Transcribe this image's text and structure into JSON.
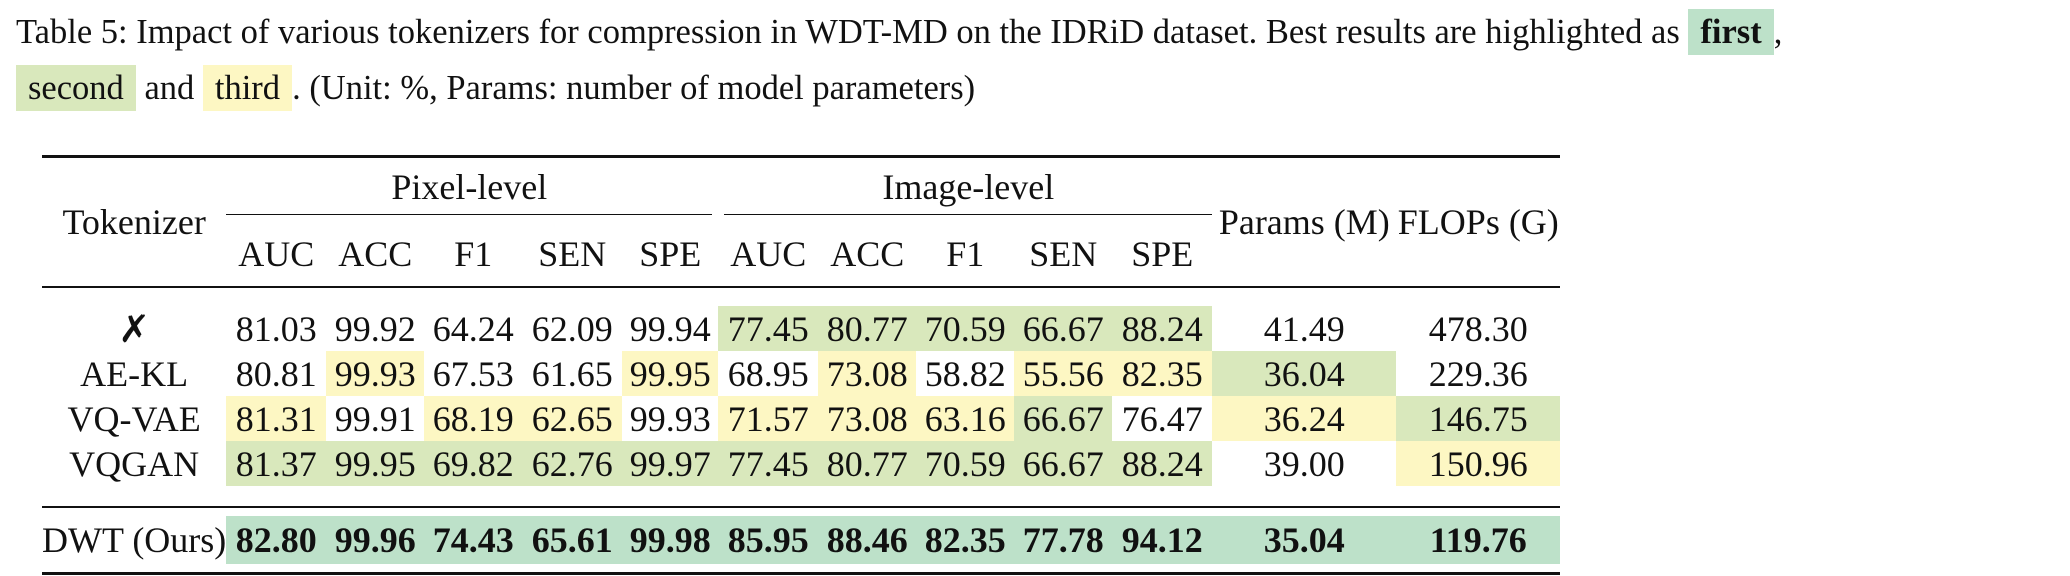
{
  "caption": {
    "text_1": "Table 5: Impact of various tokenizers for compression in WDT-MD on the IDRiD dataset. Best results are highlighted as ",
    "first": "first",
    "comma": ",",
    "second": "second",
    "and": " and ",
    "third": "third",
    "text_2": ". (Unit: %, Params: number of model parameters)"
  },
  "legend_colors": {
    "first": "#bde1c9",
    "second": "#d9e8bc",
    "third": "#fdf7c3"
  },
  "table": {
    "col_tokenizer": "Tokenizer",
    "group_pixel": "Pixel-level",
    "group_image": "Image-level",
    "col_params": "Params (M)",
    "col_flops": "FLOPs (G)",
    "metrics": [
      "AUC",
      "ACC",
      "F1",
      "SEN",
      "SPE",
      "AUC",
      "ACC",
      "F1",
      "SEN",
      "SPE"
    ],
    "rows": [
      {
        "name": "✗",
        "values": [
          "81.03",
          "99.92",
          "64.24",
          "62.09",
          "99.94",
          "77.45",
          "80.77",
          "70.59",
          "66.67",
          "88.24",
          "41.49",
          "478.30"
        ],
        "ranks": [
          "",
          "",
          "",
          "",
          "",
          "second",
          "second",
          "second",
          "second",
          "second",
          "",
          ""
        ]
      },
      {
        "name": "AE-KL",
        "values": [
          "80.81",
          "99.93",
          "67.53",
          "61.65",
          "99.95",
          "68.95",
          "73.08",
          "58.82",
          "55.56",
          "82.35",
          "36.04",
          "229.36"
        ],
        "ranks": [
          "",
          "third",
          "",
          "",
          "third",
          "",
          "third",
          "",
          "third",
          "third",
          "second",
          ""
        ]
      },
      {
        "name": "VQ-VAE",
        "values": [
          "81.31",
          "99.91",
          "68.19",
          "62.65",
          "99.93",
          "71.57",
          "73.08",
          "63.16",
          "66.67",
          "76.47",
          "36.24",
          "146.75"
        ],
        "ranks": [
          "third",
          "",
          "third",
          "third",
          "",
          "third",
          "third",
          "third",
          "second",
          "",
          "third",
          "second"
        ]
      },
      {
        "name": "VQGAN",
        "values": [
          "81.37",
          "99.95",
          "69.82",
          "62.76",
          "99.97",
          "77.45",
          "80.77",
          "70.59",
          "66.67",
          "88.24",
          "39.00",
          "150.96"
        ],
        "ranks": [
          "second",
          "second",
          "second",
          "second",
          "second",
          "second",
          "second",
          "second",
          "second",
          "second",
          "",
          "third"
        ]
      }
    ],
    "ours": {
      "name": "DWT (Ours)",
      "values": [
        "82.80",
        "99.96",
        "74.43",
        "65.61",
        "99.98",
        "85.95",
        "88.46",
        "82.35",
        "77.78",
        "94.12",
        "35.04",
        "119.76"
      ],
      "ranks": [
        "first",
        "first",
        "first",
        "first",
        "first",
        "first",
        "first",
        "first",
        "first",
        "first",
        "first",
        "first"
      ]
    }
  }
}
